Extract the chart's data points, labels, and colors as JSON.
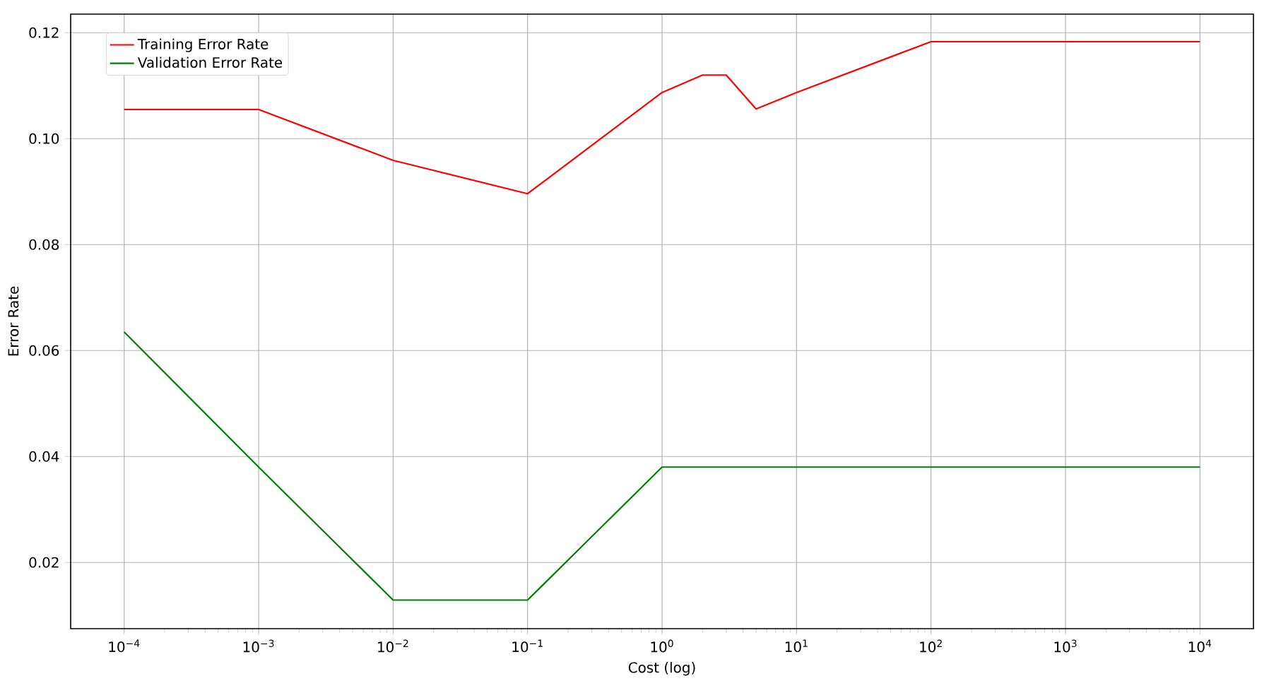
{
  "chart_data": {
    "type": "line",
    "xlabel": "Cost (log)",
    "ylabel": "Error Rate",
    "log": "x",
    "grid": true,
    "legend": "top left",
    "marker": "none",
    "line_style": "solid",
    "xlim": [
      4e-05,
      25000
    ],
    "ylim": [
      0.0075,
      0.1235
    ],
    "xticks": [
      {
        "value": 0.0001,
        "label": "10$^{−4}$"
      },
      {
        "value": 0.001,
        "label": "10$^{−3}$"
      },
      {
        "value": 0.01,
        "label": "10$^{−2}$"
      },
      {
        "value": 0.1,
        "label": "10$^{−1}$"
      },
      {
        "value": 1,
        "label": "10$^{0}$"
      },
      {
        "value": 10,
        "label": "10$^{1}$"
      },
      {
        "value": 100,
        "label": "10$^{2}$"
      },
      {
        "value": 1000,
        "label": "10$^{3}$"
      },
      {
        "value": 10000,
        "label": "10$^{4}$"
      }
    ],
    "yticks": [
      {
        "value": 0.02,
        "label": "0.02"
      },
      {
        "value": 0.04,
        "label": "0.04"
      },
      {
        "value": 0.06,
        "label": "0.06"
      },
      {
        "value": 0.08,
        "label": "0.08"
      },
      {
        "value": 0.1,
        "label": "0.10"
      },
      {
        "value": 0.12,
        "label": "0.12"
      }
    ],
    "series": [
      {
        "name": "Training Error Rate",
        "color": "#ff0000",
        "x": [
          0.0001,
          0.001,
          0.01,
          0.1,
          1,
          2,
          3,
          5,
          10,
          100,
          1000,
          10000
        ],
        "values": [
          0.1055,
          0.1055,
          0.0959,
          0.0896,
          0.1087,
          0.112,
          0.112,
          0.1056,
          0.1087,
          0.1183,
          0.1183,
          0.1183
        ]
      },
      {
        "name": "Validation Error Rate",
        "color": "#008000",
        "x": [
          0.0001,
          0.001,
          0.01,
          0.1,
          1,
          10,
          100,
          1000,
          10000
        ],
        "values": [
          0.0635,
          0.038,
          0.0129,
          0.0129,
          0.038,
          0.038,
          0.038,
          0.038,
          0.038
        ]
      }
    ]
  }
}
